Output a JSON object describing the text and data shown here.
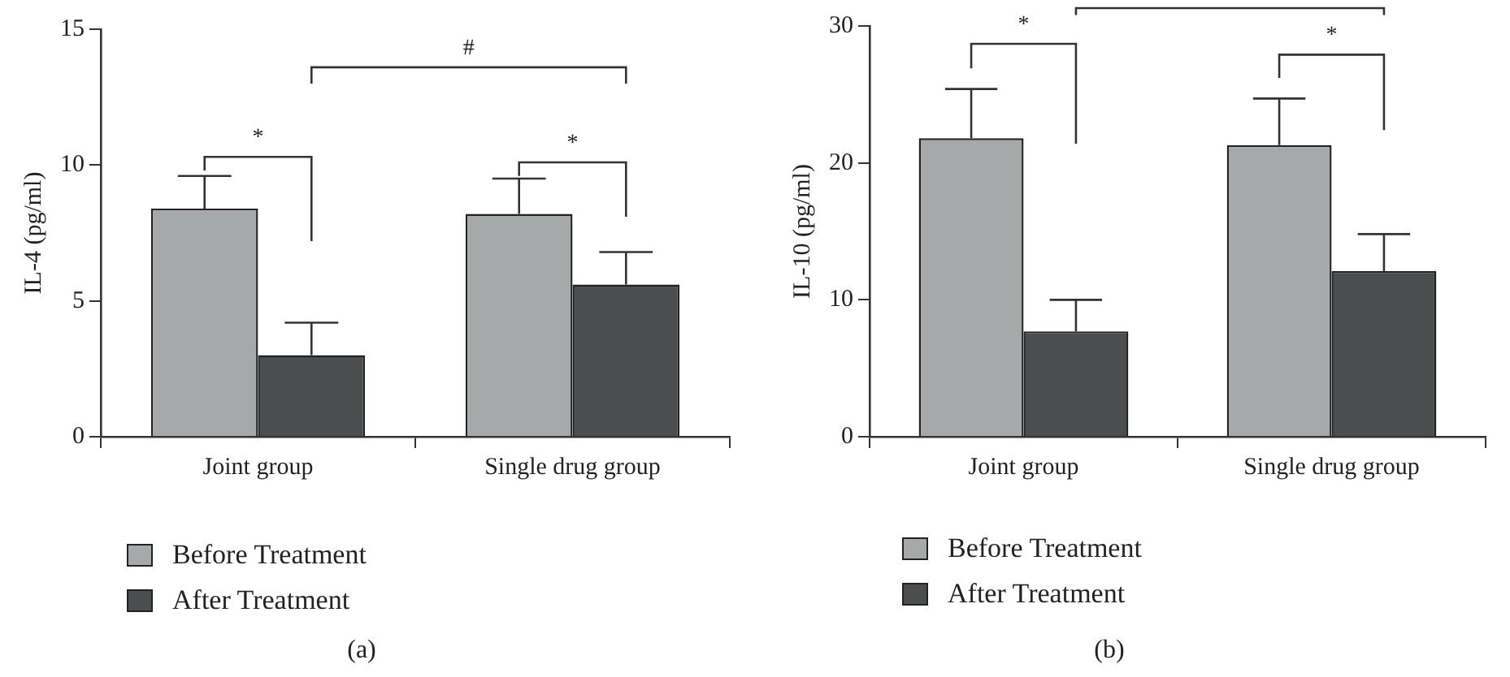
{
  "chart_data": [
    {
      "type": "bar",
      "title": "(a)",
      "ylabel": "IL-4 (pg/ml)",
      "categories": [
        "Joint group",
        "Single drug group"
      ],
      "series": [
        {
          "name": "Before Treatment",
          "color": "#a6a9aa",
          "values": [
            8.4,
            8.2
          ],
          "errors": [
            [
              8.4,
              9.6
            ],
            [
              8.2,
              9.5
            ]
          ]
        },
        {
          "name": "After Treatment",
          "color": "#4a4e4f",
          "values": [
            3.0,
            5.6
          ],
          "errors": [
            [
              3.0,
              4.2
            ],
            [
              5.6,
              6.8
            ]
          ]
        }
      ],
      "ylim": [
        0,
        15
      ],
      "yticks": [
        0,
        5,
        10,
        15
      ],
      "grid": false,
      "legend": "bottom left",
      "annotations": [
        "*",
        "*",
        "#"
      ]
    },
    {
      "type": "bar",
      "title": "(b)",
      "ylabel": "IL-10 (pg/ml)",
      "categories": [
        "Joint group",
        "Single drug group"
      ],
      "series": [
        {
          "name": "Before Treatment",
          "color": "#a6a9aa",
          "values": [
            21.8,
            21.3
          ],
          "errors": [
            [
              21.8,
              25.4
            ],
            [
              21.3,
              24.7
            ]
          ]
        },
        {
          "name": "After Treatment",
          "color": "#4a4e4f",
          "values": [
            7.7,
            12.1
          ],
          "errors": [
            [
              7.7,
              10.0
            ],
            [
              12.1,
              14.8
            ]
          ]
        }
      ],
      "ylim": [
        0,
        30
      ],
      "yticks": [
        0,
        10,
        20,
        30
      ],
      "grid": false,
      "legend": "bottom left",
      "annotations": [
        "*",
        "*"
      ]
    }
  ]
}
